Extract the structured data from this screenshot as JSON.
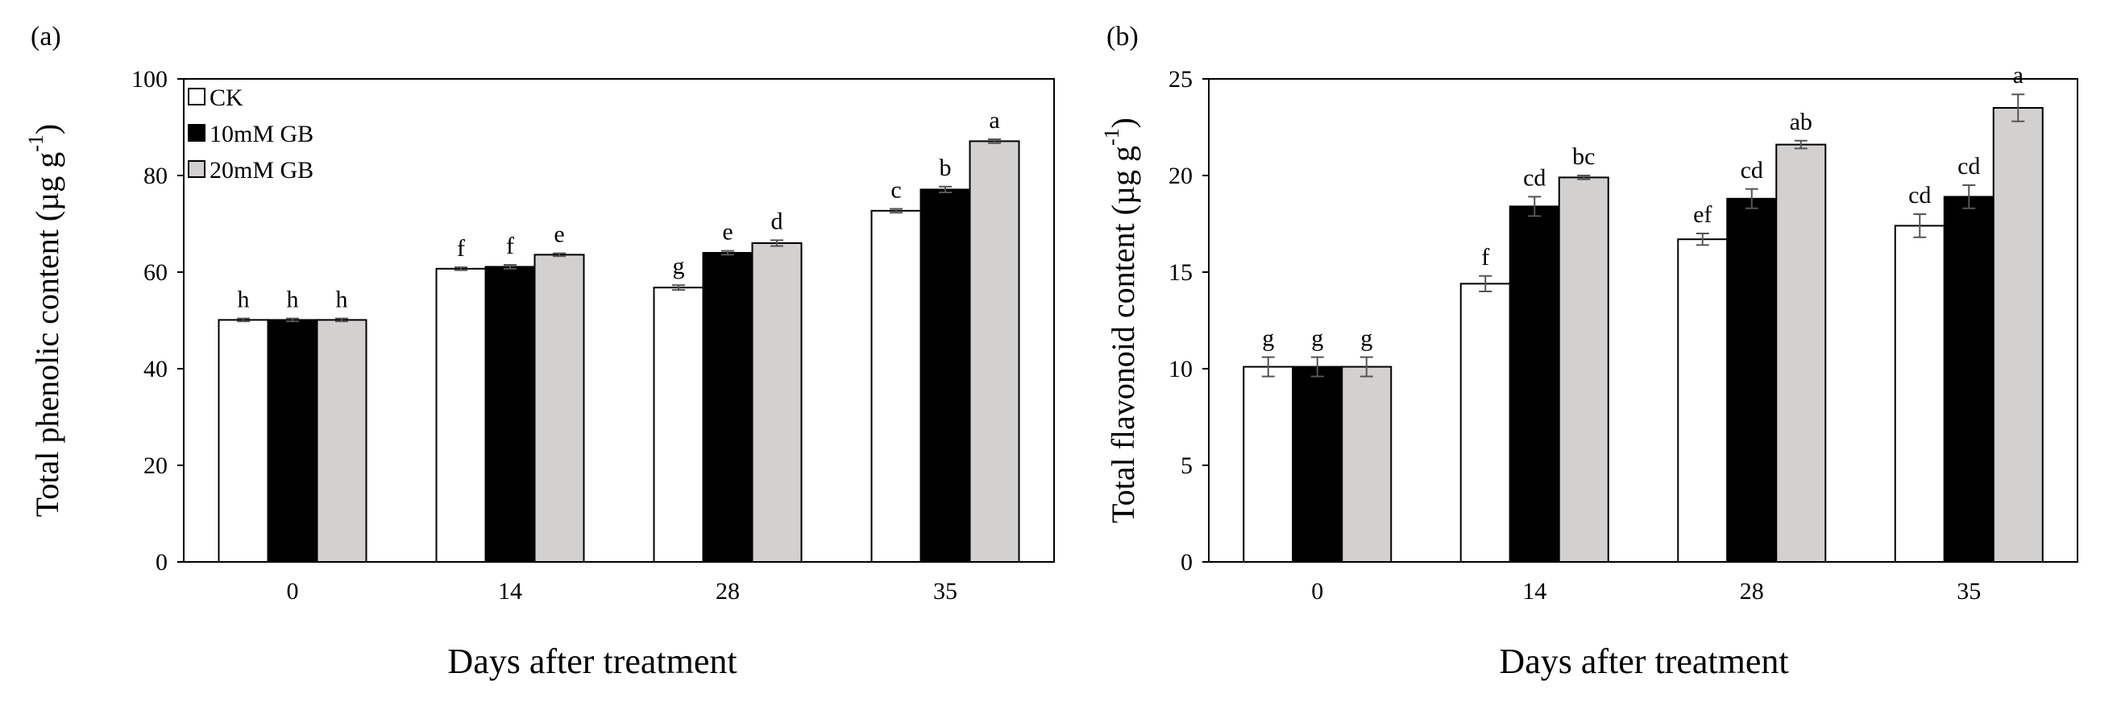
{
  "chart_data": [
    {
      "type": "bar",
      "panel_label": "(a)",
      "ylabel_main": "Total phenolic content (µg g",
      "ylabel_sup": "-1",
      "ylabel_close": ")",
      "xlabel": "Days after treatment",
      "ylim": [
        0,
        100
      ],
      "yticks": [
        "0",
        "20",
        "40",
        "60",
        "80",
        "100"
      ],
      "categories": [
        "0",
        "14",
        "28",
        "35"
      ],
      "legend": {
        "placement": "top-left",
        "entries": [
          "CK",
          "10mM GB",
          "20mM GB"
        ]
      },
      "series": [
        {
          "name": "CK",
          "color": "#ffffff",
          "values": [
            50.1,
            60.7,
            56.8,
            72.7
          ],
          "errors": [
            0.3,
            0.3,
            0.5,
            0.4
          ],
          "labels": [
            "h",
            "f",
            "g",
            "c"
          ]
        },
        {
          "name": "10mM GB",
          "color": "#000000",
          "values": [
            50.1,
            61.1,
            64.0,
            77.1
          ],
          "errors": [
            0.3,
            0.4,
            0.4,
            0.6
          ],
          "labels": [
            "h",
            "f",
            "e",
            "b"
          ]
        },
        {
          "name": "20mM GB",
          "color": "#d3d0d0",
          "values": [
            50.1,
            63.6,
            66.0,
            87.1
          ],
          "errors": [
            0.3,
            0.3,
            0.6,
            0.4
          ],
          "labels": [
            "h",
            "e",
            "d",
            "a"
          ]
        }
      ]
    },
    {
      "type": "bar",
      "panel_label": "(b)",
      "ylabel_main": "Total flavonoid content (µg g",
      "ylabel_sup": "-1",
      "ylabel_close": ")",
      "xlabel": "Days after treatment",
      "ylim": [
        0,
        25
      ],
      "yticks": [
        "0",
        "5",
        "10",
        "15",
        "20",
        "25"
      ],
      "categories": [
        "0",
        "14",
        "28",
        "35"
      ],
      "series": [
        {
          "name": "CK",
          "color": "#ffffff",
          "values": [
            10.1,
            14.4,
            16.7,
            17.4
          ],
          "errors": [
            0.5,
            0.4,
            0.3,
            0.6
          ],
          "labels": [
            "g",
            "f",
            "ef",
            "cd"
          ]
        },
        {
          "name": "10mM GB",
          "color": "#000000",
          "values": [
            10.1,
            18.4,
            18.8,
            18.9
          ],
          "errors": [
            0.5,
            0.5,
            0.5,
            0.6
          ],
          "labels": [
            "g",
            "cd",
            "cd",
            "cd"
          ]
        },
        {
          "name": "20mM GB",
          "color": "#d3d0d0",
          "values": [
            10.1,
            19.9,
            21.6,
            23.5
          ],
          "errors": [
            0.5,
            0.1,
            0.2,
            0.7
          ],
          "labels": [
            "g",
            "bc",
            "ab",
            "a"
          ]
        }
      ]
    }
  ]
}
